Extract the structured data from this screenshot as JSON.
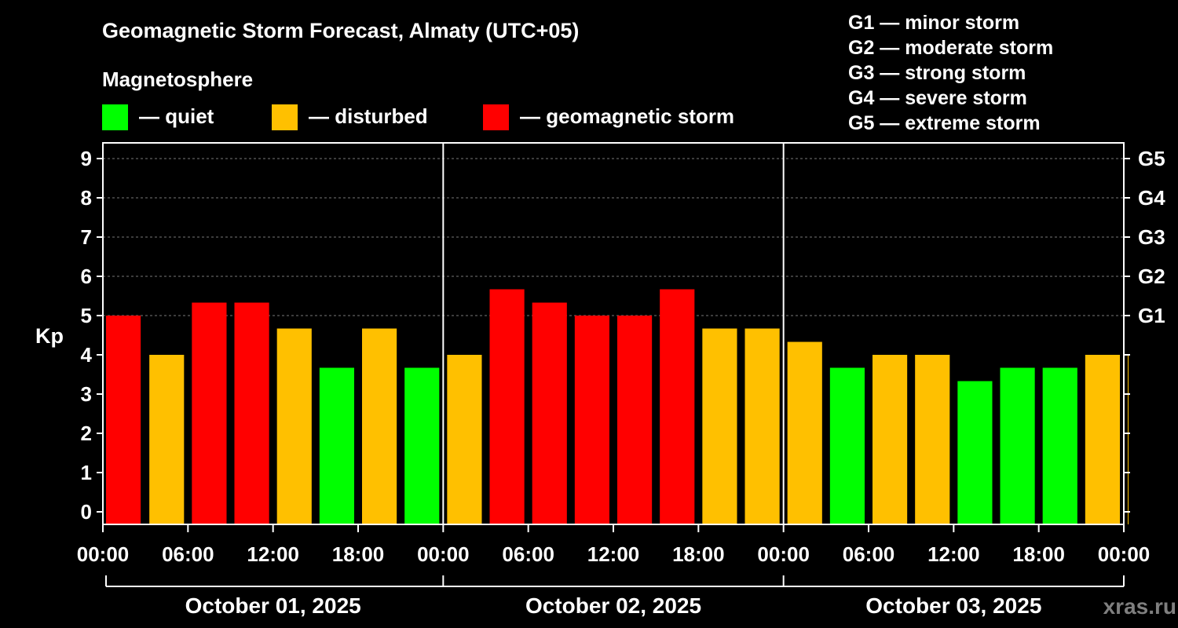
{
  "header": {
    "title": "Geomagnetic Storm Forecast, Almaty (UTC+05)",
    "legend_title": "Magnetosphere",
    "legend": [
      {
        "label": "— quiet",
        "color": "#00ff00"
      },
      {
        "label": "— disturbed",
        "color": "#ffc000"
      },
      {
        "label": "— geomagnetic storm",
        "color": "#ff0000"
      }
    ],
    "g_scale": [
      "G1 — minor storm",
      "G2 — moderate storm",
      "G3 — strong storm",
      "G4 — severe storm",
      "G5 — extreme storm"
    ]
  },
  "watermark": "xras.ru",
  "chart_data": {
    "type": "bar",
    "title": "Geomagnetic Storm Forecast, Almaty (UTC+05)",
    "ylabel": "Kp",
    "ylim": [
      0,
      9
    ],
    "y_ticks": [
      "0",
      "1",
      "2",
      "3",
      "4",
      "5",
      "6",
      "7",
      "8",
      "9"
    ],
    "right_ticks": [
      {
        "kp": 5,
        "label": "G1"
      },
      {
        "kp": 6,
        "label": "G2"
      },
      {
        "kp": 7,
        "label": "G3"
      },
      {
        "kp": 8,
        "label": "G4"
      },
      {
        "kp": 9,
        "label": "G5"
      }
    ],
    "x_tick_labels": [
      "00:00",
      "06:00",
      "12:00",
      "18:00",
      "00:00",
      "06:00",
      "12:00",
      "18:00",
      "00:00",
      "06:00",
      "12:00",
      "18:00",
      "00:00"
    ],
    "days": [
      "October 01, 2025",
      "October 02, 2025",
      "October 03, 2025"
    ],
    "grid": "dashed horizontal",
    "colors": {
      "quiet": "#00ff00",
      "disturbed": "#ffc000",
      "storm": "#ff0000"
    },
    "values": [
      5.0,
      4.0,
      5.33,
      5.33,
      4.67,
      3.67,
      4.67,
      3.67,
      4.0,
      5.67,
      5.33,
      5.0,
      5.0,
      5.67,
      4.67,
      4.67,
      4.33,
      3.67,
      4.0,
      4.0,
      3.33,
      3.67,
      3.67,
      4.0,
      4.0
    ],
    "levels": [
      "storm",
      "disturbed",
      "storm",
      "storm",
      "disturbed",
      "quiet",
      "disturbed",
      "quiet",
      "disturbed",
      "storm",
      "storm",
      "storm",
      "storm",
      "storm",
      "disturbed",
      "disturbed",
      "disturbed",
      "quiet",
      "disturbed",
      "disturbed",
      "quiet",
      "quiet",
      "quiet",
      "disturbed",
      "disturbed"
    ]
  }
}
